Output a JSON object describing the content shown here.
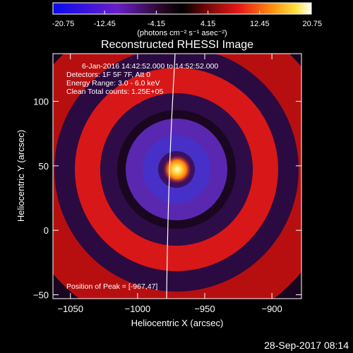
{
  "colorbar": {
    "ticks": [
      "-20.75",
      "-12.45",
      "-4.15",
      "4.15",
      "12.45",
      "20.75"
    ],
    "tick_values": [
      -20.75,
      -12.45,
      -4.15,
      4.15,
      12.45,
      20.75
    ],
    "range": [
      -20.75,
      20.75
    ],
    "units": "(photons cm⁻² s⁻¹ asec⁻²)"
  },
  "chart_data": {
    "type": "heatmap",
    "title": "Reconstructed RHESSI Image",
    "xlabel": "Heliocentric X (arcsec)",
    "ylabel": "Heliocentric Y (arcsec)",
    "xlim": [
      -1063,
      -878
    ],
    "ylim": [
      -53,
      137
    ],
    "xticks": [
      -1050,
      -1000,
      -950,
      -900
    ],
    "xtick_labels": [
      "−1050",
      "−1000",
      "−950",
      "−900"
    ],
    "yticks": [
      -50,
      0,
      50,
      100
    ],
    "ytick_labels": [
      "−50",
      "0",
      "50",
      "100"
    ],
    "peak": [
      -967,
      47
    ],
    "annotations": [
      "6-Jan-2016 14:42:52.000 to 14:52:52.000",
      "Detectors: 1F 5F 7F, Att 0",
      "Energy Range: 3.0 - 6.0 keV",
      "Clean     Total counts: 1.25E+05",
      "Position of Peak = [-967,47]"
    ]
  },
  "footer": {
    "timestamp": "28-Sep-2017 08:14"
  },
  "colors": {
    "limb": "#ffffff",
    "axes": "#ffffff",
    "background": "#000000"
  }
}
